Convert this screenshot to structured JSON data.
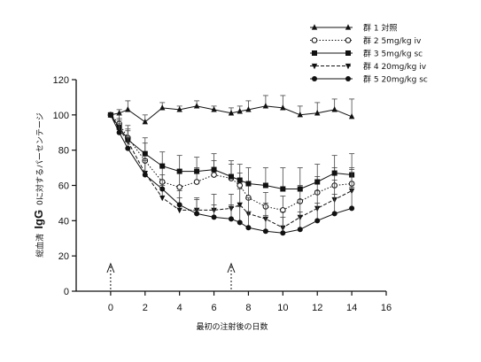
{
  "chart_data": {
    "type": "line",
    "xlabel": "最初の注射後の日数",
    "ylabel_prefix": "総血清",
    "ylabel_main": "IgG",
    "ylabel_suffix": "0に対するパーセンテージ",
    "xlim": [
      -2,
      16
    ],
    "ylim": [
      0,
      120
    ],
    "xticks": [
      0,
      2,
      4,
      6,
      8,
      10,
      12,
      14,
      16
    ],
    "yticks": [
      0,
      20,
      40,
      60,
      80,
      100,
      120
    ],
    "legend_position": "top-right",
    "grid": false,
    "injection_days": [
      0,
      7
    ],
    "series": [
      {
        "name": "群 1 対照",
        "marker": "triangle-up",
        "line_style": "solid",
        "x": [
          0,
          0.5,
          1,
          2,
          3,
          4,
          5,
          6,
          7,
          7.5,
          8,
          9,
          10,
          11,
          12,
          13,
          14
        ],
        "y": [
          100,
          101,
          103,
          96,
          104,
          103,
          105,
          103,
          101,
          102,
          103,
          105,
          104,
          100,
          101,
          103,
          99
        ],
        "err": [
          0,
          2,
          5,
          4,
          3,
          2,
          3,
          2,
          3,
          3,
          5,
          6,
          7,
          5,
          6,
          6,
          10
        ]
      },
      {
        "name": "群 2 5mg/kg iv",
        "marker": "circle-open",
        "line_style": "dotted",
        "x": [
          0,
          0.5,
          1,
          2,
          3,
          4,
          5,
          6,
          7,
          7.5,
          8,
          9,
          10,
          11,
          12,
          13,
          14
        ],
        "y": [
          100,
          95,
          87,
          74,
          62,
          59,
          62,
          66,
          64,
          60,
          53,
          48,
          46,
          51,
          56,
          60,
          61
        ],
        "err": [
          0,
          5,
          7,
          10,
          9,
          10,
          8,
          8,
          8,
          7,
          8,
          8,
          8,
          9,
          9,
          10,
          9
        ]
      },
      {
        "name": "群 3 5mg/kg sc",
        "marker": "square",
        "line_style": "solid",
        "x": [
          0,
          0.5,
          1,
          2,
          3,
          4,
          5,
          6,
          7,
          7.5,
          8,
          9,
          10,
          11,
          12,
          13,
          14
        ],
        "y": [
          100,
          93,
          86,
          78,
          71,
          68,
          68,
          69,
          65,
          63,
          61,
          60,
          58,
          58,
          62,
          67,
          66
        ],
        "err": [
          0,
          5,
          6,
          9,
          8,
          9,
          8,
          9,
          9,
          9,
          9,
          10,
          12,
          12,
          10,
          10,
          12
        ]
      },
      {
        "name": "群 4 20mg/kg iv",
        "marker": "triangle-down",
        "line_style": "dashed",
        "x": [
          0,
          0.5,
          1,
          2,
          3,
          4,
          5,
          6,
          7,
          7.5,
          8,
          9,
          10,
          11,
          12,
          13,
          14
        ],
        "y": [
          100,
          92,
          85,
          67,
          53,
          46,
          46,
          46,
          47,
          49,
          44,
          41,
          36,
          42,
          47,
          52,
          57
        ],
        "err": [
          0,
          5,
          6,
          8,
          7,
          7,
          7,
          9,
          8,
          9,
          9,
          9,
          9,
          10,
          10,
          11,
          12
        ]
      },
      {
        "name": "群 5 20mg/kg sc",
        "marker": "circle-filled",
        "line_style": "solid",
        "x": [
          0,
          0.5,
          1,
          2,
          3,
          4,
          5,
          6,
          7,
          7.5,
          8,
          9,
          10,
          11,
          12,
          13,
          14
        ],
        "y": [
          100,
          90,
          81,
          66,
          58,
          49,
          44,
          42,
          41,
          39,
          36,
          34,
          33,
          35,
          40,
          44,
          47
        ],
        "err": [
          0,
          5,
          6,
          8,
          8,
          8,
          8,
          7,
          8,
          9,
          9,
          9,
          9,
          10,
          10,
          11,
          12
        ]
      }
    ]
  }
}
